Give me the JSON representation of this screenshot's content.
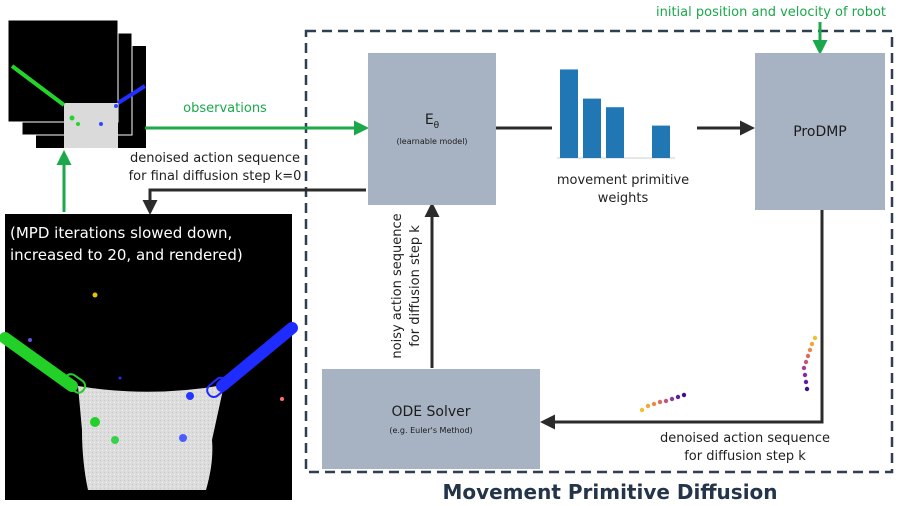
{
  "header": {
    "initial_state_label": "initial position and velocity of robot"
  },
  "frame": {
    "title": "Movement Primitive Diffusion"
  },
  "encoder": {
    "title_main": "E",
    "title_sub": "θ",
    "subtitle": "(learnable model)"
  },
  "prodmp": {
    "title": "ProDMP"
  },
  "ode_solver": {
    "title": "ODE Solver",
    "subtitle": "(e.g. Euler's Method)"
  },
  "labels": {
    "observations": "observations",
    "final_sequence_line1": "denoised action sequence",
    "final_sequence_line2": "for final diffusion step k=0",
    "weights_line1": "movement primitive",
    "weights_line2": "weights",
    "noisy_line1": "noisy action sequence",
    "noisy_line2": "for diffusion step k",
    "denoised_line1": "denoised action sequence",
    "denoised_line2": "for diffusion step k"
  },
  "render_panel": {
    "caption_line1": "(MPD iterations slowed down,",
    "caption_line2": "increased to 20, and rendered)"
  },
  "chart_data": {
    "type": "bar",
    "values": [
      0.82,
      0.55,
      0.47,
      0,
      0.3
    ],
    "bar_color": "#2077b4"
  },
  "colors": {
    "box_fill": "#a7b3c3",
    "arrow_dark": "#2b2b2b",
    "arrow_green": "#1aa84a",
    "frame_dash": "#2f3e50",
    "title_color": "#243549"
  }
}
